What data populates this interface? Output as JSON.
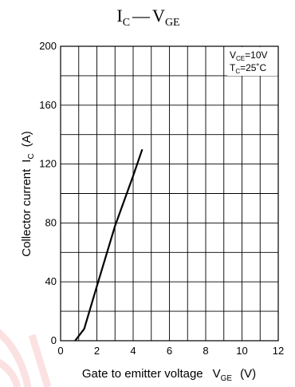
{
  "chart_data": {
    "type": "line",
    "title": {
      "main": "I",
      "main_sub": "C",
      "dash": "—",
      "second": "V",
      "second_sub": "GE"
    },
    "xlabel": {
      "text": "Gate to emitter voltage",
      "sym": "V",
      "sym_sub": "GE",
      "unit": "(V)"
    },
    "ylabel": {
      "text": "Collector current",
      "sym": "I",
      "sym_sub": "C",
      "unit": "(A)"
    },
    "xlim": [
      0,
      12
    ],
    "ylim": [
      0,
      200
    ],
    "x_ticks": [
      "0",
      "2",
      "4",
      "6",
      "8",
      "10",
      "12"
    ],
    "y_ticks": [
      "0",
      "40",
      "80",
      "120",
      "160",
      "200"
    ],
    "x_minor_step": 1,
    "y_minor_step": 20,
    "grid": true,
    "legend_position": "top-right",
    "conditions": [
      {
        "sym": "V",
        "sub": "CE",
        "rest": "=10V"
      },
      {
        "sym": "T",
        "sub": "C",
        "rest": "=25˚C"
      }
    ],
    "series": [
      {
        "x": [
          0.8,
          1.3,
          2.0,
          3.0,
          4.0,
          4.5
        ],
        "y": [
          0,
          8,
          37,
          78,
          112,
          130
        ]
      }
    ],
    "line_color": "#000000",
    "watermark_color": "#e5101e"
  }
}
